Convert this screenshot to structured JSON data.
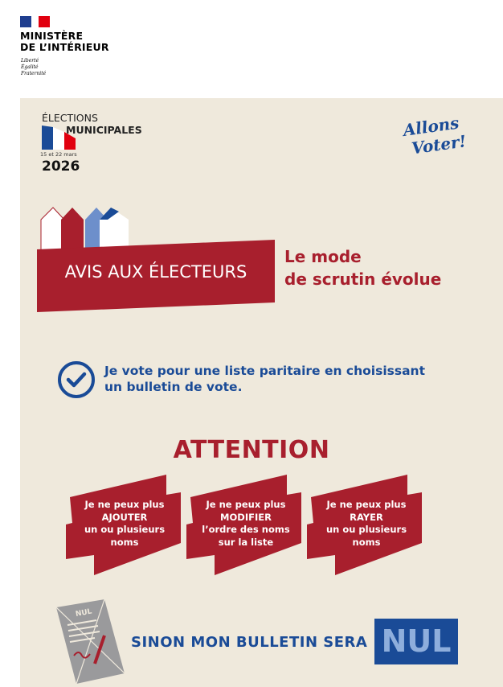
{
  "header": {
    "ministry_line1": "MINISTÈRE",
    "ministry_line2": "DE L’INTÉRIEUR",
    "motto": [
      "Liberté",
      "Égalité",
      "Fraternité"
    ]
  },
  "elections": {
    "line1": "ÉLECTIONS",
    "line2": "MUNICIPALES",
    "dates": "15 et 22 mars",
    "year": "2026",
    "slogan": "Allons Voter!"
  },
  "notice": {
    "banner": "AVIS AUX ÉLECTEURS",
    "headline_line1": "Le mode",
    "headline_line2": "de scrutin évolue"
  },
  "vote": {
    "line1": "Je vote pour une liste paritaire en choisissant",
    "line2": "un bulletin de vote."
  },
  "attention": {
    "title": "ATTENTION",
    "items": [
      {
        "l1": "Je ne peux plus",
        "l2": "AJOUTER",
        "l3": "un ou plusieurs",
        "l4": "noms"
      },
      {
        "l1": "Je ne peux plus",
        "l2": "MODIFIER",
        "l3": "l’ordre des noms",
        "l4": "sur la liste"
      },
      {
        "l1": "Je ne peux plus",
        "l2": "RAYER",
        "l3": "un ou plusieurs",
        "l4": "noms"
      }
    ]
  },
  "footer": {
    "doc_label": "NUL",
    "text": "SINON MON BULLETIN SERA",
    "nul": "NUL"
  },
  "colors": {
    "red": "#a81f2d",
    "blue": "#1a4b97",
    "beige": "#efe9dc"
  }
}
